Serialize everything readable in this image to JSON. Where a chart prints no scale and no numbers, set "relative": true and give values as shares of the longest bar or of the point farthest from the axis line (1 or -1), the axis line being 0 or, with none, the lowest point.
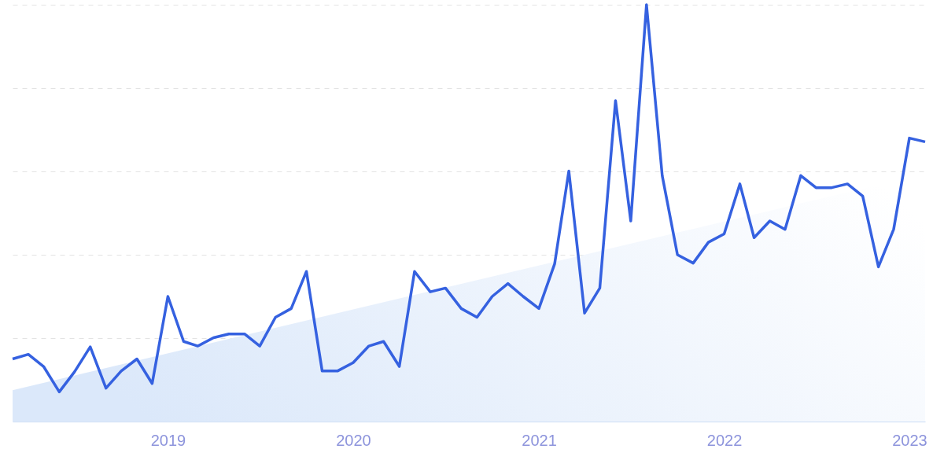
{
  "chart_data": {
    "type": "line",
    "relative": true,
    "grid": "y",
    "x": [
      "2018-03",
      "2018-04",
      "2018-05",
      "2018-06",
      "2018-07",
      "2018-08",
      "2018-09",
      "2018-10",
      "2018-11",
      "2018-12",
      "2019-01",
      "2019-02",
      "2019-03",
      "2019-04",
      "2019-05",
      "2019-06",
      "2019-07",
      "2019-08",
      "2019-09",
      "2019-10",
      "2019-11",
      "2019-12",
      "2020-01",
      "2020-02",
      "2020-03",
      "2020-04",
      "2020-05",
      "2020-06",
      "2020-07",
      "2020-08",
      "2020-09",
      "2020-10",
      "2020-11",
      "2020-12",
      "2021-01",
      "2021-02",
      "2021-03",
      "2021-04",
      "2021-05",
      "2021-06",
      "2021-07",
      "2021-08",
      "2021-09",
      "2021-10",
      "2021-11",
      "2021-12",
      "2022-01",
      "2022-02",
      "2022-03",
      "2022-04",
      "2022-05",
      "2022-06",
      "2022-07",
      "2022-08",
      "2022-09",
      "2022-10",
      "2022-11",
      "2022-12",
      "2023-01",
      "2023-02"
    ],
    "xlim": [
      "2018-03",
      "2023-02"
    ],
    "xticks": [
      "2019",
      "2020",
      "2021",
      "2022",
      "2023"
    ],
    "series": [
      {
        "type": "area",
        "color": "#dbe8fa",
        "x": [
          "2018-03",
          "2023-02"
        ],
        "values": [
          0.075,
          0.594
        ]
      },
      {
        "color": "#3561e0",
        "values": [
          0.15,
          0.161,
          0.132,
          0.071,
          0.119,
          0.179,
          0.08,
          0.121,
          0.15,
          0.091,
          0.3,
          0.192,
          0.181,
          0.201,
          0.21,
          0.21,
          0.181,
          0.25,
          0.271,
          0.36,
          0.121,
          0.121,
          0.141,
          0.181,
          0.192,
          0.132,
          0.36,
          0.311,
          0.32,
          0.271,
          0.25,
          0.3,
          0.331,
          0.3,
          0.271,
          0.378,
          0.601,
          0.26,
          0.32,
          0.77,
          0.481,
          1,
          0.59,
          0.4,
          0.38,
          0.43,
          0.45,
          0.57,
          0.441,
          0.481,
          0.461,
          0.59,
          0.561,
          0.561,
          0.57,
          0.541,
          0.371,
          0.461,
          0.68,
          0.671
        ]
      }
    ]
  }
}
